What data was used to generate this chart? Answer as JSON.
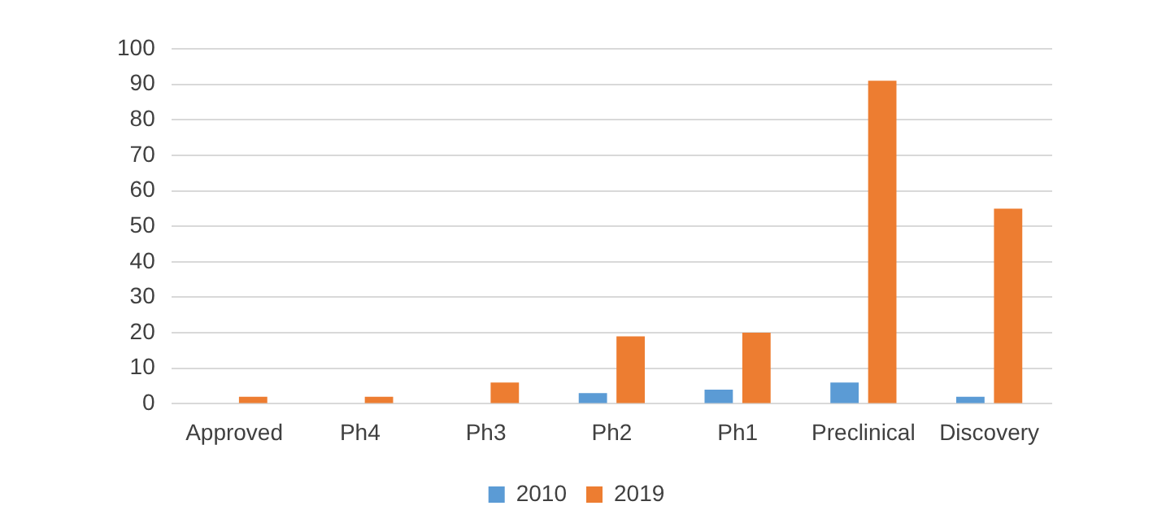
{
  "chart_data": {
    "type": "bar",
    "categories": [
      "Approved",
      "Ph4",
      "Ph3",
      "Ph2",
      "Ph1",
      "Preclinical",
      "Discovery"
    ],
    "series": [
      {
        "name": "2010",
        "color": "#5b9bd5",
        "values": [
          0,
          0,
          0,
          3,
          4,
          6,
          2
        ]
      },
      {
        "name": "2019",
        "color": "#ed7d31",
        "values": [
          2,
          2,
          6,
          19,
          20,
          91,
          55
        ]
      }
    ],
    "ylim": [
      0,
      100
    ],
    "yticks": [
      0,
      10,
      20,
      30,
      40,
      50,
      60,
      70,
      80,
      90,
      100
    ],
    "grid": "y",
    "legend": "bottom"
  }
}
